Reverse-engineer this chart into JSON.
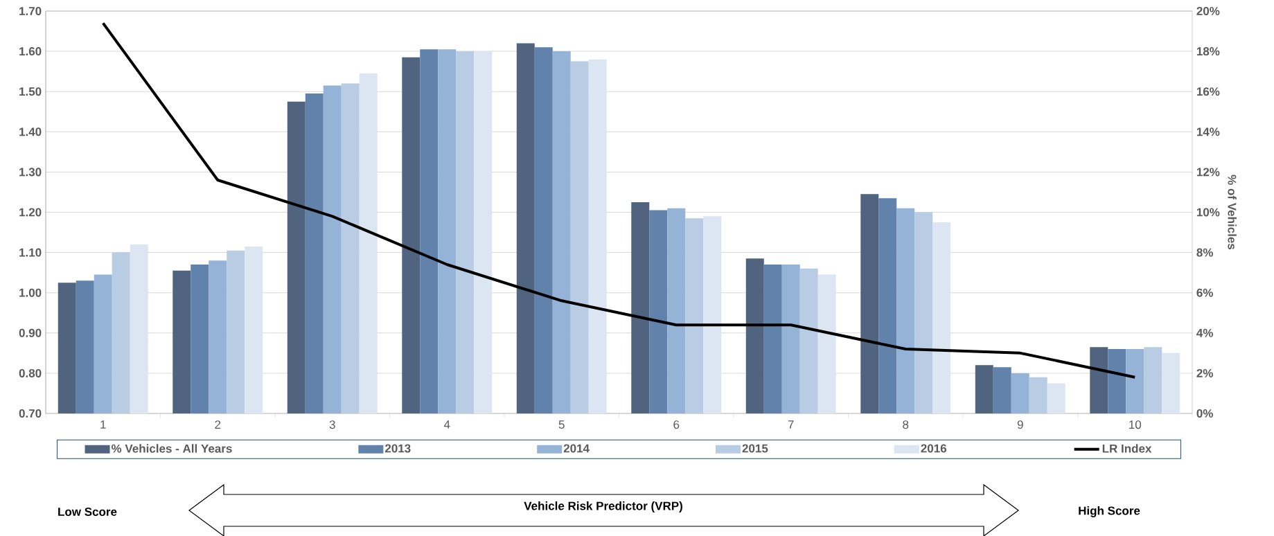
{
  "chart_data": {
    "type": "bar",
    "categories": [
      "1",
      "2",
      "3",
      "4",
      "5",
      "6",
      "7",
      "8",
      "9",
      "10"
    ],
    "series": [
      {
        "name": "% Vehicles - All Years",
        "color": "#50637f",
        "axis": "y2",
        "values": [
          6.5,
          7.1,
          15.5,
          17.7,
          18.4,
          10.5,
          7.7,
          10.9,
          2.4,
          3.3
        ]
      },
      {
        "name": "2013",
        "color": "#6082ab",
        "axis": "y2",
        "values": [
          6.6,
          7.4,
          15.9,
          18.1,
          18.2,
          10.1,
          7.4,
          10.7,
          2.3,
          3.2
        ]
      },
      {
        "name": "2014",
        "color": "#95b3d7",
        "axis": "y2",
        "values": [
          6.9,
          7.6,
          16.3,
          18.1,
          18.0,
          10.2,
          7.4,
          10.2,
          2.0,
          3.2
        ]
      },
      {
        "name": "2015",
        "color": "#b8cce4",
        "axis": "y2",
        "values": [
          8.0,
          8.1,
          16.4,
          18.0,
          17.5,
          9.7,
          7.2,
          10.0,
          1.8,
          3.3
        ]
      },
      {
        "name": "2016",
        "color": "#dce6f2",
        "axis": "y2",
        "values": [
          8.4,
          8.3,
          16.9,
          18.0,
          17.6,
          9.8,
          6.9,
          9.5,
          1.5,
          3.0
        ]
      },
      {
        "name": "LR Index",
        "color": "#000000",
        "type": "line",
        "axis": "y",
        "values": [
          1.67,
          1.28,
          1.19,
          1.07,
          0.98,
          0.92,
          0.92,
          0.86,
          0.85,
          0.79
        ]
      }
    ],
    "ylim": [
      0.7,
      1.7
    ],
    "yticks": [
      {
        "value": 0.7,
        "label": "0.70"
      },
      {
        "value": 0.8,
        "label": "0.80"
      },
      {
        "value": 0.9,
        "label": "0.90"
      },
      {
        "value": 1.0,
        "label": "1.00"
      },
      {
        "value": 1.1,
        "label": "1.10"
      },
      {
        "value": 1.2,
        "label": "1.20"
      },
      {
        "value": 1.3,
        "label": "1.30"
      },
      {
        "value": 1.4,
        "label": "1.40"
      },
      {
        "value": 1.5,
        "label": "1.50"
      },
      {
        "value": 1.6,
        "label": "1.60"
      },
      {
        "value": 1.7,
        "label": "1.70"
      }
    ],
    "y2lim": [
      0,
      20
    ],
    "y2ticks": [
      {
        "value": 0,
        "label": "0%"
      },
      {
        "value": 2,
        "label": "2%"
      },
      {
        "value": 4,
        "label": "4%"
      },
      {
        "value": 6,
        "label": "6%"
      },
      {
        "value": 8,
        "label": "8%"
      },
      {
        "value": 10,
        "label": "10%"
      },
      {
        "value": 12,
        "label": "12%"
      },
      {
        "value": 14,
        "label": "14%"
      },
      {
        "value": 16,
        "label": "16%"
      },
      {
        "value": 18,
        "label": "18%"
      },
      {
        "value": 20,
        "label": "20%"
      }
    ],
    "y2label": "% of Vehicles",
    "annotations": [
      "Low Score",
      "Vehicle Risk Predictor (VRP)",
      "High Score"
    ],
    "grid": "y",
    "legend": "bottom",
    "marker": "none",
    "line_style": "solid"
  }
}
